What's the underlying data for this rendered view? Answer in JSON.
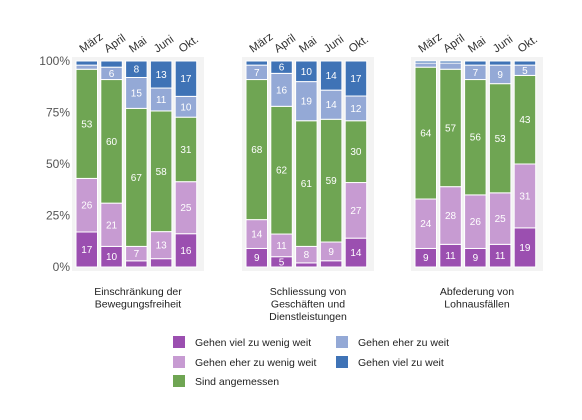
{
  "chart_data": {
    "type": "bar",
    "stacked": true,
    "y_ticks": [
      "0%",
      "25%",
      "50%",
      "75%",
      "100%"
    ],
    "ylim": [
      0,
      100
    ],
    "categories": [
      "März",
      "April",
      "Mai",
      "Juni",
      "Okt."
    ],
    "series": [
      {
        "name": "Gehen viel zu wenig weit",
        "color": "#9b4fb0"
      },
      {
        "name": "Gehen eher zu wenig weit",
        "color": "#c79bd2"
      },
      {
        "name": "Sind angemessen",
        "color": "#6fa553"
      },
      {
        "name": "Gehen eher zu weit",
        "color": "#94a9d6"
      },
      {
        "name": "Gehen viel zu weit",
        "color": "#3f73b6"
      }
    ],
    "facets": [
      {
        "label": [
          "Einschränkung der",
          "Bewegungsfreiheit"
        ],
        "bars": [
          {
            "values": [
              17,
              26,
              53,
              2,
              2
            ],
            "labels": [
              "17",
              "26",
              "53",
              "",
              ""
            ]
          },
          {
            "values": [
              10,
              21,
              60,
              6,
              3
            ],
            "labels": [
              "10",
              "21",
              "60",
              "6",
              ""
            ]
          },
          {
            "values": [
              3,
              7,
              67,
              15,
              8
            ],
            "labels": [
              "",
              "7",
              "67",
              "15",
              "8"
            ]
          },
          {
            "values": [
              4,
              13,
              58,
              11,
              13
            ],
            "labels": [
              "",
              "13",
              "58",
              "11",
              "13"
            ]
          },
          {
            "values": [
              16,
              25,
              31,
              10,
              17
            ],
            "labels": [
              "16",
              "25",
              "31",
              "10",
              "17"
            ]
          }
        ]
      },
      {
        "label": [
          "Schliessung von",
          "Geschäften und",
          "Dienstleistungen"
        ],
        "bars": [
          {
            "values": [
              9,
              14,
              68,
              7,
              2
            ],
            "labels": [
              "9",
              "14",
              "68",
              "7",
              ""
            ]
          },
          {
            "values": [
              5,
              11,
              62,
              16,
              6
            ],
            "labels": [
              "5",
              "11",
              "62",
              "16",
              "6"
            ]
          },
          {
            "values": [
              2,
              8,
              61,
              19,
              10
            ],
            "labels": [
              "",
              "8",
              "61",
              "19",
              "10"
            ]
          },
          {
            "values": [
              3,
              9,
              59,
              14,
              14
            ],
            "labels": [
              "",
              "9",
              "59",
              "14",
              "14"
            ]
          },
          {
            "values": [
              14,
              27,
              30,
              12,
              17
            ],
            "labels": [
              "14",
              "27",
              "30",
              "12",
              "17"
            ]
          }
        ]
      },
      {
        "label": [
          "Abfederung von",
          "Lohnausfällen"
        ],
        "bars": [
          {
            "values": [
              9,
              24,
              64,
              2,
              1
            ],
            "labels": [
              "9",
              "24",
              "64",
              "",
              ""
            ]
          },
          {
            "values": [
              11,
              28,
              57,
              3,
              1
            ],
            "labels": [
              "11",
              "28",
              "57",
              "",
              ""
            ]
          },
          {
            "values": [
              9,
              26,
              56,
              7,
              2
            ],
            "labels": [
              "9",
              "26",
              "56",
              "7",
              ""
            ]
          },
          {
            "values": [
              11,
              25,
              53,
              9,
              2
            ],
            "labels": [
              "11",
              "25",
              "53",
              "9",
              ""
            ]
          },
          {
            "values": [
              19,
              31,
              43,
              5,
              2
            ],
            "labels": [
              "19",
              "31",
              "43",
              "5",
              ""
            ]
          }
        ]
      }
    ],
    "legend_order": [
      0,
      3,
      1,
      4,
      2
    ]
  }
}
